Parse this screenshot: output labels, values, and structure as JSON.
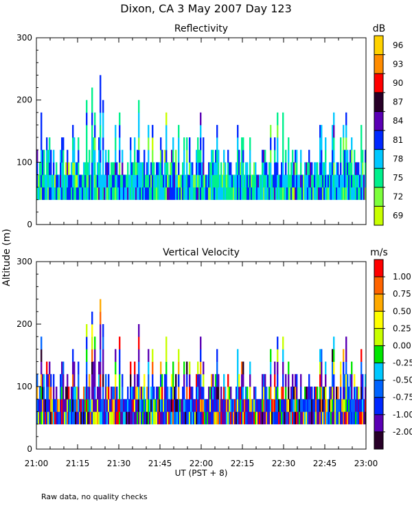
{
  "title": "Dixon, CA  3 May 2007  Day 123",
  "y_axis_label": "Altitude (m)",
  "x_axis_label": "UT  (PST + 8)",
  "x_tick_labels": [
    "21:00",
    "21:15",
    "21:30",
    "21:45",
    "22:00",
    "22:15",
    "22:30",
    "22:45",
    "23:00"
  ],
  "footer_note": "Raw data, no quality checks",
  "chart_data": [
    {
      "type": "heatmap",
      "title": "Reflectivity",
      "x_range_minutes": [
        0,
        120
      ],
      "ylim": [
        0,
        300
      ],
      "y_ticks": [
        0,
        100,
        200,
        300
      ],
      "y_tick_labels": [
        "0",
        "100",
        "200",
        "300"
      ],
      "colorbar": {
        "unit": "dB",
        "colors": [
          "#c8ff00",
          "#7cff3c",
          "#00f08c",
          "#00c8ff",
          "#0028ff",
          "#5a00b4",
          "#280028",
          "#ff0000",
          "#ff8c00",
          "#ffd200"
        ],
        "tick_labels": [
          "69",
          "72",
          "75",
          "78",
          "81",
          "84",
          "87",
          "90",
          "93",
          "96"
        ]
      },
      "data_floor_m": 40,
      "typical_tops_m": [
        80,
        100,
        120,
        140,
        160,
        180
      ],
      "max_top_m": 240,
      "dominant_values": [
        "75",
        "78",
        "81"
      ]
    },
    {
      "type": "heatmap",
      "title": "Vertical Velocity",
      "x_range_minutes": [
        0,
        120
      ],
      "ylim": [
        0,
        300
      ],
      "y_ticks": [
        0,
        100,
        200,
        300
      ],
      "y_tick_labels": [
        "0",
        "100",
        "200",
        "300"
      ],
      "colorbar": {
        "unit": "m/s",
        "colors": [
          "#280028",
          "#5a00b4",
          "#0028ff",
          "#0064ff",
          "#00c8ff",
          "#00e600",
          "#c8ff00",
          "#ffff00",
          "#ffaa00",
          "#ff6400",
          "#ff0000"
        ],
        "tick_labels": [
          "-2.00",
          "-1.00",
          "-0.75",
          "-0.50",
          "-0.25",
          "0.00",
          "0.25",
          "0.50",
          "0.75",
          "1.00"
        ]
      },
      "data_floor_m": 40,
      "typical_tops_m": [
        80,
        100,
        120,
        140,
        160,
        180
      ],
      "max_top_m": 240,
      "dominant_values": [
        "-0.75",
        "-1.00",
        "-0.50"
      ]
    }
  ]
}
